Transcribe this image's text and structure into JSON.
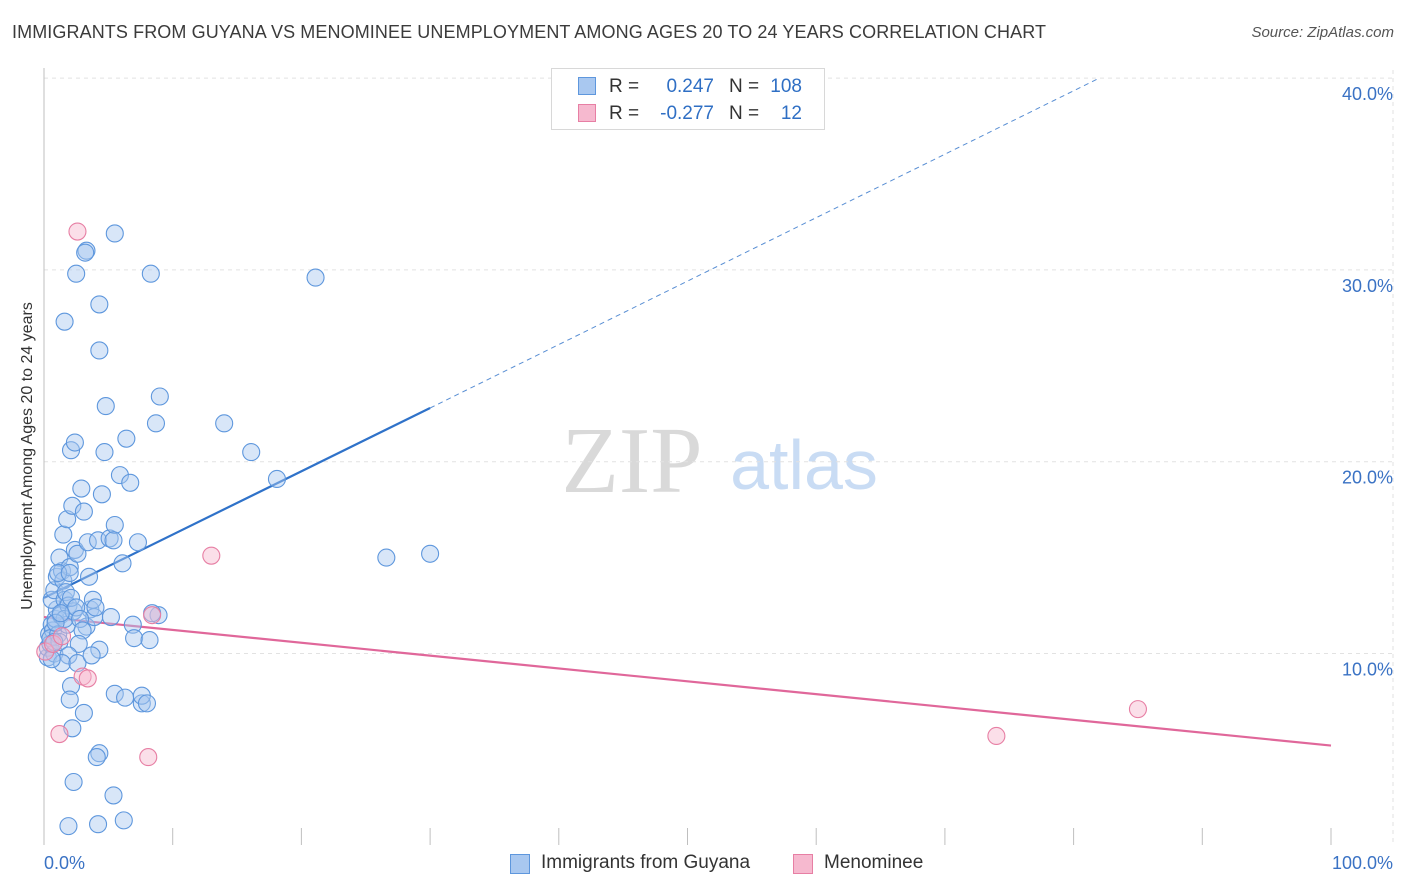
{
  "title": "IMMIGRANTS FROM GUYANA VS MENOMINEE UNEMPLOYMENT AMONG AGES 20 TO 24 YEARS CORRELATION CHART",
  "source": "Source: ZipAtlas.com",
  "watermark": {
    "zip": "ZIP",
    "atlas": "atlas"
  },
  "legend_top": {
    "rows": [
      {
        "r_label": "R =",
        "r_value": "0.247",
        "n_label": "N =",
        "n_value": "108",
        "swatch": "blue"
      },
      {
        "r_label": "R =",
        "r_value": "-0.277",
        "n_label": "N =",
        "n_value": "12",
        "swatch": "pink"
      }
    ]
  },
  "legend_bottom": [
    {
      "label": "Immigrants from Guyana",
      "swatch": "blue"
    },
    {
      "label": "Menominee",
      "swatch": "pink"
    }
  ],
  "colors": {
    "blue_fill": "#a9c8f0",
    "blue_stroke": "#5e97dd",
    "blue_line": "#2f72c9",
    "pink_fill": "#f6b9cf",
    "pink_stroke": "#e77fa4",
    "pink_line": "#e0679a",
    "grid": "#e2e2e2",
    "tick_text": "#3a72c4"
  },
  "chart_data": {
    "type": "scatter",
    "title": "IMMIGRANTS FROM GUYANA VS MENOMINEE UNEMPLOYMENT AMONG AGES 20 TO 24 YEARS CORRELATION CHART",
    "xlabel": "",
    "ylabel": "Unemployment Among Ages 20 to 24 years",
    "xlim": [
      0,
      100
    ],
    "ylim": [
      0,
      40
    ],
    "x_tick_labels": [
      "0.0%",
      "100.0%"
    ],
    "y_ticks": [
      10,
      20,
      30,
      40
    ],
    "y_tick_labels": [
      "10.0%",
      "20.0%",
      "30.0%",
      "40.0%"
    ],
    "series": [
      {
        "name": "Immigrants from Guyana",
        "color": "blue",
        "r": 0.247,
        "n": 108,
        "points": [
          [
            0.3,
            9.8
          ],
          [
            0.3,
            10.3
          ],
          [
            0.4,
            11.0
          ],
          [
            0.5,
            10.5
          ],
          [
            0.6,
            11.5
          ],
          [
            0.7,
            11.2
          ],
          [
            0.5,
            10.8
          ],
          [
            0.8,
            10.0
          ],
          [
            0.9,
            11.8
          ],
          [
            1.0,
            12.3
          ],
          [
            0.6,
            12.8
          ],
          [
            0.8,
            13.3
          ],
          [
            1.1,
            11.0
          ],
          [
            1.2,
            10.6
          ],
          [
            1.3,
            12.0
          ],
          [
            1.0,
            14.0
          ],
          [
            1.4,
            14.3
          ],
          [
            1.5,
            13.8
          ],
          [
            1.2,
            15.0
          ],
          [
            1.6,
            12.8
          ],
          [
            1.7,
            13.2
          ],
          [
            1.8,
            11.5
          ],
          [
            1.9,
            12.5
          ],
          [
            2.0,
            14.5
          ],
          [
            1.5,
            16.2
          ],
          [
            1.8,
            17.0
          ],
          [
            2.2,
            17.7
          ],
          [
            2.4,
            15.4
          ],
          [
            2.6,
            15.2
          ],
          [
            2.9,
            18.6
          ],
          [
            3.1,
            17.4
          ],
          [
            3.4,
            15.8
          ],
          [
            3.5,
            14.0
          ],
          [
            3.6,
            12.3
          ],
          [
            3.8,
            12.8
          ],
          [
            3.3,
            11.4
          ],
          [
            3.9,
            11.9
          ],
          [
            4.2,
            15.9
          ],
          [
            4.5,
            18.3
          ],
          [
            4.7,
            20.5
          ],
          [
            5.1,
            16.0
          ],
          [
            4.3,
            10.2
          ],
          [
            4.0,
            12.4
          ],
          [
            5.2,
            11.9
          ],
          [
            5.5,
            16.7
          ],
          [
            5.4,
            15.9
          ],
          [
            5.9,
            19.3
          ],
          [
            6.1,
            14.7
          ],
          [
            6.4,
            21.2
          ],
          [
            6.7,
            18.9
          ],
          [
            6.9,
            11.5
          ],
          [
            7.0,
            10.8
          ],
          [
            7.3,
            15.8
          ],
          [
            7.6,
            7.4
          ],
          [
            8.2,
            10.7
          ],
          [
            8.7,
            22.0
          ],
          [
            9.0,
            23.4
          ],
          [
            8.9,
            12.0
          ],
          [
            1.6,
            11.8
          ],
          [
            2.3,
            12.2
          ],
          [
            1.1,
            14.2
          ],
          [
            2.1,
            12.9
          ],
          [
            2.5,
            12.4
          ],
          [
            2.8,
            11.8
          ],
          [
            3.0,
            11.2
          ],
          [
            2.7,
            10.5
          ],
          [
            1.9,
            9.9
          ],
          [
            1.4,
            9.5
          ],
          [
            2.1,
            8.3
          ],
          [
            2.0,
            7.6
          ],
          [
            3.1,
            6.9
          ],
          [
            2.2,
            6.1
          ],
          [
            5.5,
            7.9
          ],
          [
            6.3,
            7.7
          ],
          [
            7.6,
            7.8
          ],
          [
            8.0,
            7.4
          ],
          [
            2.6,
            9.5
          ],
          [
            4.3,
            4.8
          ],
          [
            4.1,
            4.6
          ],
          [
            2.3,
            3.3
          ],
          [
            5.4,
            2.6
          ],
          [
            1.9,
            1.0
          ],
          [
            4.2,
            1.1
          ],
          [
            6.2,
            1.3
          ],
          [
            1.6,
            27.3
          ],
          [
            2.5,
            29.8
          ],
          [
            3.3,
            31.0
          ],
          [
            3.2,
            30.9
          ],
          [
            5.5,
            31.9
          ],
          [
            8.3,
            29.8
          ],
          [
            4.3,
            28.2
          ],
          [
            4.3,
            25.8
          ],
          [
            4.8,
            22.9
          ],
          [
            2.1,
            20.6
          ],
          [
            2.4,
            21.0
          ],
          [
            14.0,
            22.0
          ],
          [
            16.1,
            20.5
          ],
          [
            18.1,
            19.1
          ],
          [
            21.1,
            29.6
          ],
          [
            26.6,
            15.0
          ],
          [
            30.0,
            15.2
          ],
          [
            8.4,
            12.1
          ],
          [
            0.6,
            9.7
          ],
          [
            2.0,
            14.2
          ],
          [
            0.9,
            11.6
          ],
          [
            1.3,
            12.1
          ],
          [
            3.7,
            9.9
          ],
          [
            0.8,
            10.6
          ]
        ],
        "trendline": {
          "x": [
            0,
            30
          ],
          "y": [
            12.9,
            22.8
          ],
          "dashed_extension": {
            "x": [
              30,
              82
            ],
            "y": [
              22.8,
              40.0
            ]
          }
        }
      },
      {
        "name": "Menominee",
        "color": "pink",
        "r": -0.277,
        "n": 12,
        "points": [
          [
            0.1,
            10.1
          ],
          [
            0.7,
            10.5
          ],
          [
            1.4,
            10.9
          ],
          [
            1.2,
            5.8
          ],
          [
            2.6,
            32.0
          ],
          [
            8.4,
            12.0
          ],
          [
            13.0,
            15.1
          ],
          [
            3.0,
            8.8
          ],
          [
            3.4,
            8.7
          ],
          [
            8.1,
            4.6
          ],
          [
            74.0,
            5.7
          ],
          [
            85.0,
            7.1
          ]
        ],
        "trendline": {
          "x": [
            0,
            100
          ],
          "y": [
            11.9,
            5.2
          ]
        }
      }
    ]
  }
}
